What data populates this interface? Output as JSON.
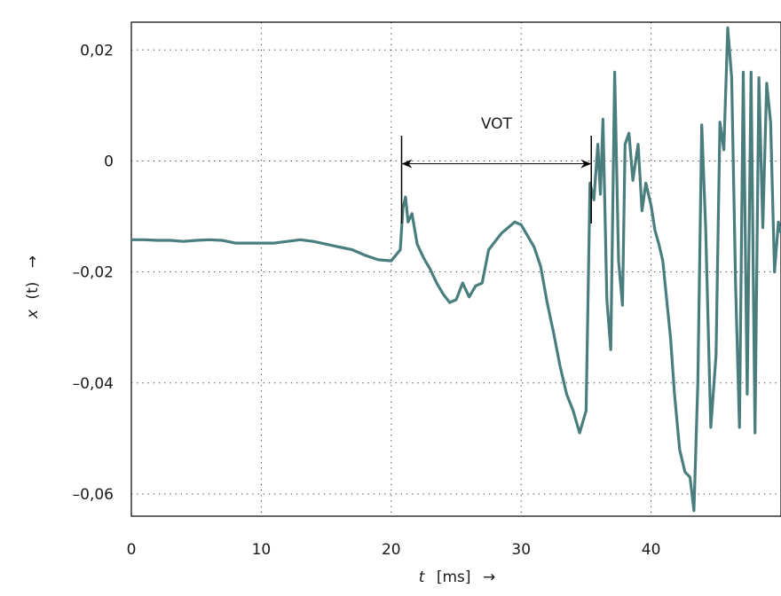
{
  "chart_data": {
    "type": "line",
    "title": "",
    "xlabel": {
      "var": "t",
      "unit": "[ms]",
      "arrow": "→"
    },
    "ylabel": {
      "var": "x",
      "arg": "(t)",
      "arrow": "→"
    },
    "xlim": [
      0,
      50
    ],
    "ylim": [
      -0.064,
      0.025
    ],
    "xticks": [
      {
        "value": 0,
        "label": "0"
      },
      {
        "value": 10,
        "label": "10"
      },
      {
        "value": 20,
        "label": "20"
      },
      {
        "value": 30,
        "label": "30"
      },
      {
        "value": 40,
        "label": "40"
      }
    ],
    "yticks": [
      {
        "value": 0.02,
        "label": "0,02"
      },
      {
        "value": 0,
        "label": "0"
      },
      {
        "value": -0.02,
        "label": "–0,02"
      },
      {
        "value": -0.04,
        "label": "–0,04"
      },
      {
        "value": -0.06,
        "label": "–0,06"
      }
    ],
    "grid": true,
    "line_color": "#4a7d7d",
    "annotation": {
      "label": "VOT",
      "x_start": 20.8,
      "x_end": 35.4,
      "y": -0.0005
    },
    "series": [
      {
        "x": [
          0,
          1,
          2,
          3,
          4,
          5,
          6,
          7,
          8,
          9,
          10,
          11,
          12,
          13,
          14,
          15,
          16,
          17,
          18,
          19,
          20,
          20.7,
          20.9,
          21.1,
          21.3,
          21.6,
          22,
          22.5,
          23,
          23.5,
          24,
          24.5,
          25,
          25.5,
          26,
          26.5,
          27,
          27.5,
          28,
          28.5,
          29,
          29.5,
          30,
          30.5,
          31,
          31.5,
          32,
          32.5,
          33,
          33.5,
          34,
          34.5,
          35,
          35.3,
          35.6,
          35.9,
          36.1,
          36.3,
          36.6,
          36.9,
          37.2,
          37.5,
          37.8,
          38,
          38.3,
          38.6,
          39,
          39.3,
          39.6,
          40,
          40.3,
          40.6,
          40.9,
          41.2,
          41.5,
          41.8,
          42.2,
          42.6,
          43,
          43.3,
          43.6,
          43.9,
          44.2,
          44.6,
          45,
          45.3,
          45.6,
          45.9,
          46.2,
          46.5,
          46.8,
          47.1,
          47.4,
          47.7,
          48,
          48.3,
          48.6,
          48.9,
          49.2,
          49.5,
          49.8,
          50
        ],
        "y": [
          -0.0142,
          -0.0142,
          -0.0143,
          -0.0143,
          -0.0145,
          -0.0143,
          -0.0142,
          -0.0143,
          -0.0148,
          -0.0148,
          -0.0148,
          -0.0148,
          -0.0145,
          -0.0142,
          -0.0145,
          -0.015,
          -0.0155,
          -0.016,
          -0.017,
          -0.0178,
          -0.018,
          -0.016,
          -0.0085,
          -0.0065,
          -0.011,
          -0.0095,
          -0.015,
          -0.0175,
          -0.0195,
          -0.022,
          -0.024,
          -0.0255,
          -0.025,
          -0.022,
          -0.0245,
          -0.0225,
          -0.022,
          -0.016,
          -0.0145,
          -0.013,
          -0.012,
          -0.011,
          -0.0115,
          -0.0135,
          -0.0155,
          -0.019,
          -0.0255,
          -0.031,
          -0.037,
          -0.042,
          -0.045,
          -0.049,
          -0.045,
          -0.004,
          -0.007,
          0.003,
          -0.006,
          0.0075,
          -0.025,
          -0.034,
          0.016,
          -0.018,
          -0.026,
          0.003,
          0.005,
          -0.0035,
          0.003,
          -0.009,
          -0.004,
          -0.008,
          -0.0125,
          -0.015,
          -0.018,
          -0.025,
          -0.032,
          -0.042,
          -0.052,
          -0.056,
          -0.057,
          -0.063,
          -0.04,
          0.0065,
          -0.012,
          -0.048,
          -0.035,
          0.007,
          0.002,
          0.024,
          0.015,
          -0.022,
          -0.048,
          0.016,
          -0.042,
          0.016,
          -0.049,
          0.015,
          -0.012,
          0.014,
          0.007,
          -0.02,
          -0.011,
          -0.013
        ]
      }
    ]
  }
}
